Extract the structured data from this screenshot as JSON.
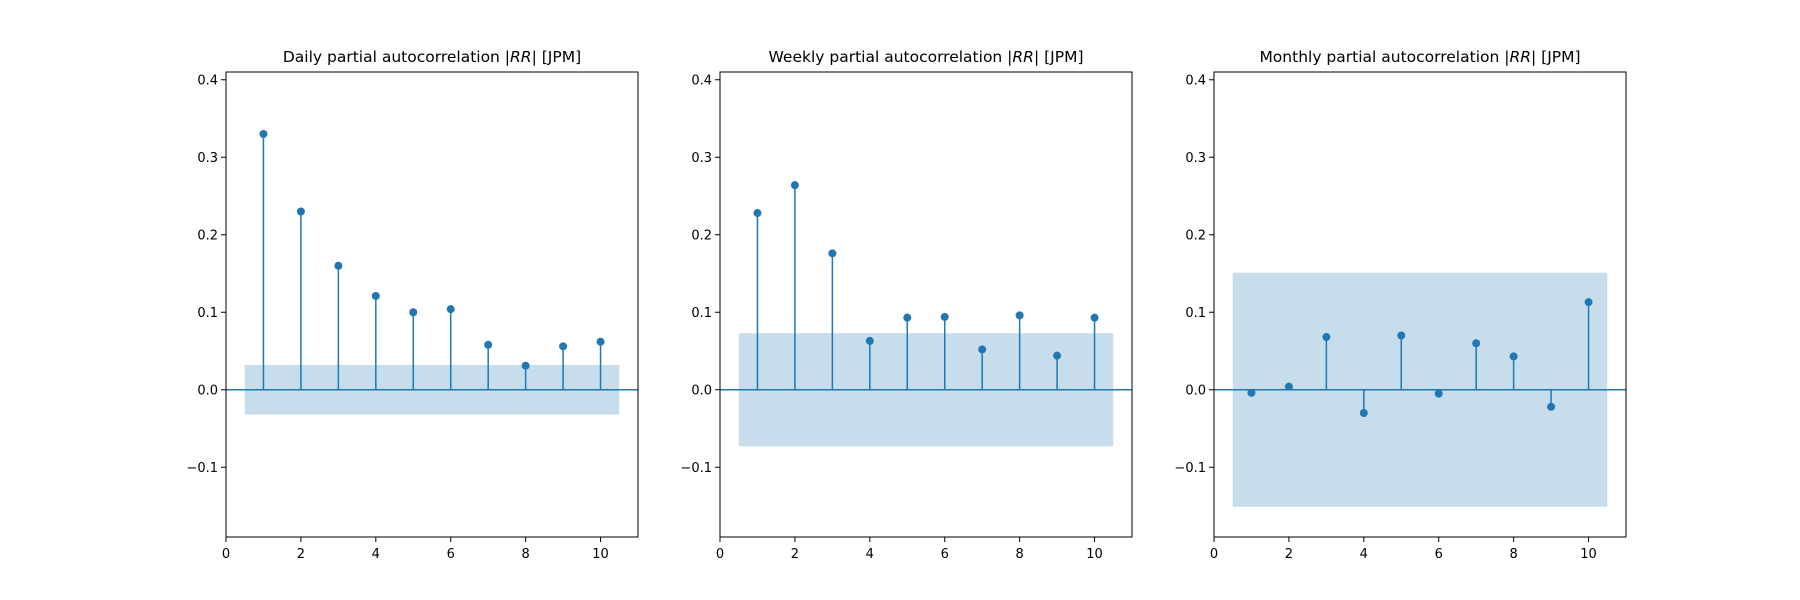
{
  "colors": {
    "series": "#1f77b4",
    "band": "#1f77b4",
    "band_opacity": 0.25
  },
  "chart_data": [
    {
      "type": "stem",
      "title": "Daily partial autocorrelation |RR| [JPM]",
      "title_prefix": "Daily partial autocorrelation |",
      "title_italic": "RR",
      "title_suffix": "| [JPM]",
      "xlim": [
        0,
        11
      ],
      "ylim": [
        -0.19,
        0.41
      ],
      "xticks": [
        0,
        2,
        4,
        6,
        8,
        10
      ],
      "xtick_labels": [
        "0",
        "2",
        "4",
        "6",
        "8",
        "10"
      ],
      "yticks": [
        -0.1,
        0.0,
        0.1,
        0.2,
        0.3,
        0.4
      ],
      "ytick_labels": [
        "−0.1",
        "0.0",
        "0.1",
        "0.2",
        "0.3",
        "0.4"
      ],
      "confidence_band": {
        "lower": -0.032,
        "upper": 0.032,
        "x_range": [
          0.5,
          10.5
        ]
      },
      "x": [
        1,
        2,
        3,
        4,
        5,
        6,
        7,
        8,
        9,
        10
      ],
      "values": [
        0.33,
        0.23,
        0.16,
        0.121,
        0.1,
        0.104,
        0.058,
        0.031,
        0.056,
        0.062
      ]
    },
    {
      "type": "stem",
      "title": "Weekly partial autocorrelation |RR| [JPM]",
      "title_prefix": "Weekly partial autocorrelation |",
      "title_italic": "RR",
      "title_suffix": "| [JPM]",
      "xlim": [
        0,
        11
      ],
      "ylim": [
        -0.19,
        0.41
      ],
      "xticks": [
        0,
        2,
        4,
        6,
        8,
        10
      ],
      "xtick_labels": [
        "0",
        "2",
        "4",
        "6",
        "8",
        "10"
      ],
      "yticks": [
        -0.1,
        0.0,
        0.1,
        0.2,
        0.3,
        0.4
      ],
      "ytick_labels": [
        "−0.1",
        "0.0",
        "0.1",
        "0.2",
        "0.3",
        "0.4"
      ],
      "confidence_band": {
        "lower": -0.073,
        "upper": 0.073,
        "x_range": [
          0.5,
          10.5
        ]
      },
      "x": [
        1,
        2,
        3,
        4,
        5,
        6,
        7,
        8,
        9,
        10
      ],
      "values": [
        0.228,
        0.264,
        0.176,
        0.063,
        0.093,
        0.094,
        0.052,
        0.096,
        0.044,
        0.093
      ]
    },
    {
      "type": "stem",
      "title": "Monthly partial autocorrelation |RR| [JPM]",
      "title_prefix": "Monthly partial autocorrelation |",
      "title_italic": "RR",
      "title_suffix": "| [JPM]",
      "xlim": [
        0,
        11
      ],
      "ylim": [
        -0.19,
        0.41
      ],
      "xticks": [
        0,
        2,
        4,
        6,
        8,
        10
      ],
      "xtick_labels": [
        "0",
        "2",
        "4",
        "6",
        "8",
        "10"
      ],
      "yticks": [
        -0.1,
        0.0,
        0.1,
        0.2,
        0.3,
        0.4
      ],
      "ytick_labels": [
        "−0.1",
        "0.0",
        "0.1",
        "0.2",
        "0.3",
        "0.4"
      ],
      "confidence_band": {
        "lower": -0.151,
        "upper": 0.151,
        "x_range": [
          0.5,
          10.5
        ]
      },
      "x": [
        1,
        2,
        3,
        4,
        5,
        6,
        7,
        8,
        9,
        10
      ],
      "values": [
        -0.004,
        0.004,
        0.068,
        -0.03,
        0.07,
        -0.005,
        0.06,
        0.043,
        -0.022,
        0.113
      ]
    }
  ]
}
